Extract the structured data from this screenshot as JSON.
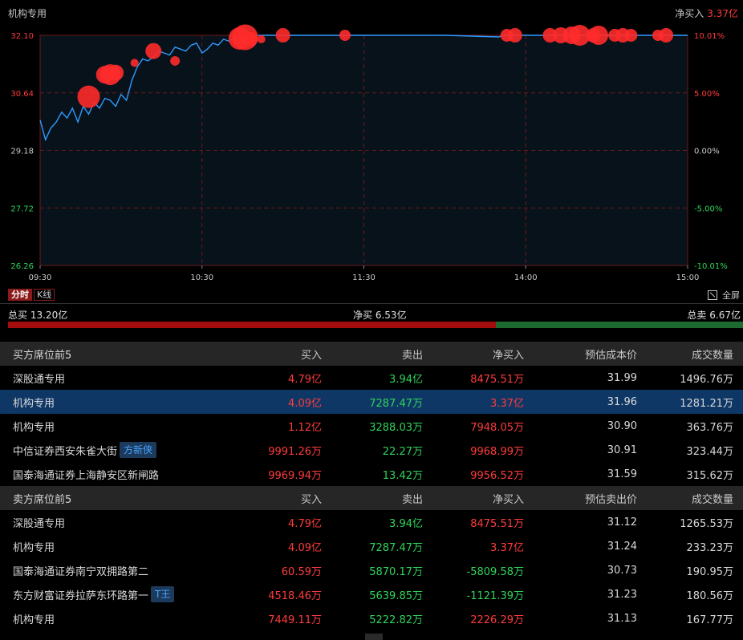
{
  "header": {
    "title": "机构专用",
    "net_label": "净买入",
    "net_value": "3.37亿"
  },
  "chart_data": {
    "type": "line",
    "y_left_ticks": [
      "32.10",
      "30.64",
      "29.18",
      "27.72",
      "26.26"
    ],
    "y_right_ticks": [
      "10.01%",
      "5.00%",
      "0.00%",
      "-5.00%",
      "-10.01%"
    ],
    "x_ticks": [
      "09:30",
      "10:30",
      "11:30",
      "14:00",
      "15:00"
    ],
    "ylim": [
      26.26,
      32.1
    ],
    "price_series": [
      [
        0,
        29.95
      ],
      [
        2,
        29.45
      ],
      [
        4,
        29.75
      ],
      [
        6,
        29.9
      ],
      [
        8,
        30.15
      ],
      [
        10,
        30.0
      ],
      [
        12,
        30.25
      ],
      [
        14,
        29.9
      ],
      [
        16,
        30.3
      ],
      [
        18,
        30.1
      ],
      [
        20,
        30.4
      ],
      [
        22,
        30.25
      ],
      [
        24,
        30.5
      ],
      [
        26,
        30.45
      ],
      [
        28,
        30.3
      ],
      [
        30,
        30.6
      ],
      [
        32,
        30.45
      ],
      [
        34,
        30.95
      ],
      [
        36,
        31.3
      ],
      [
        38,
        31.5
      ],
      [
        40,
        31.45
      ],
      [
        42,
        31.55
      ],
      [
        44,
        31.7
      ],
      [
        46,
        31.65
      ],
      [
        48,
        31.6
      ],
      [
        50,
        31.8
      ],
      [
        52,
        31.75
      ],
      [
        54,
        31.7
      ],
      [
        56,
        31.85
      ],
      [
        58,
        31.9
      ],
      [
        60,
        31.65
      ],
      [
        62,
        31.75
      ],
      [
        64,
        31.9
      ],
      [
        66,
        31.85
      ],
      [
        68,
        32.0
      ],
      [
        70,
        31.95
      ],
      [
        72,
        32.05
      ],
      [
        74,
        32.0
      ],
      [
        76,
        32.08
      ],
      [
        78,
        32.05
      ],
      [
        80,
        32.1
      ],
      [
        90,
        32.1
      ],
      [
        100,
        32.1
      ],
      [
        120,
        32.1
      ],
      [
        150,
        32.1
      ],
      [
        170,
        32.06
      ],
      [
        171,
        32.08
      ],
      [
        172,
        32.1
      ],
      [
        200,
        32.1
      ],
      [
        240,
        32.1
      ]
    ],
    "trade_markers": [
      {
        "t": 18,
        "price": 30.54,
        "size": 14
      },
      {
        "t": 24,
        "price": 31.1,
        "size": 11
      },
      {
        "t": 26,
        "price": 31.1,
        "size": 13
      },
      {
        "t": 28,
        "price": 31.15,
        "size": 10
      },
      {
        "t": 35,
        "price": 31.4,
        "size": 5
      },
      {
        "t": 42,
        "price": 31.7,
        "size": 10
      },
      {
        "t": 50,
        "price": 31.45,
        "size": 6
      },
      {
        "t": 74,
        "price": 32.02,
        "size": 14
      },
      {
        "t": 76,
        "price": 32.05,
        "size": 16
      },
      {
        "t": 78,
        "price": 32.0,
        "size": 9
      },
      {
        "t": 82,
        "price": 32.0,
        "size": 5
      },
      {
        "t": 90,
        "price": 32.1,
        "size": 9
      },
      {
        "t": 113,
        "price": 32.1,
        "size": 7
      },
      {
        "t": 173,
        "price": 32.1,
        "size": 8
      },
      {
        "t": 176,
        "price": 32.1,
        "size": 9
      },
      {
        "t": 189,
        "price": 32.1,
        "size": 9
      },
      {
        "t": 193,
        "price": 32.1,
        "size": 10
      },
      {
        "t": 197,
        "price": 32.1,
        "size": 11
      },
      {
        "t": 200,
        "price": 32.1,
        "size": 13
      },
      {
        "t": 205,
        "price": 32.1,
        "size": 9
      },
      {
        "t": 207,
        "price": 32.1,
        "size": 12
      },
      {
        "t": 213,
        "price": 32.1,
        "size": 8
      },
      {
        "t": 216,
        "price": 32.1,
        "size": 9
      },
      {
        "t": 219,
        "price": 32.1,
        "size": 8
      },
      {
        "t": 229,
        "price": 32.1,
        "size": 7
      },
      {
        "t": 232,
        "price": 32.1,
        "size": 9
      }
    ],
    "x_range": [
      0,
      240
    ],
    "colors": {
      "line": "#2e9bff",
      "marker": "#ff2b2b",
      "grid": "#6b1a1a",
      "up": "#ff3b3b",
      "down": "#2fd35a",
      "zero": "#c8c8c8"
    }
  },
  "tabs": [
    {
      "label": "分时",
      "active": true
    },
    {
      "label": "K线",
      "active": false
    }
  ],
  "fullscreen_label": "全屏",
  "totals": {
    "buy_label": "总买",
    "buy_value": "13.20亿",
    "net_label": "净买",
    "net_value": "6.53亿",
    "sell_label": "总卖",
    "sell_value": "6.67亿",
    "buy_ratio": 0.664
  },
  "buy_table": {
    "headers": [
      "买方席位前5",
      "买入",
      "卖出",
      "净买入",
      "预估成本价",
      "成交数量"
    ],
    "rows": [
      {
        "name": "深股通专用",
        "tag": "",
        "buy": "4.79亿",
        "sell": "3.94亿",
        "net": "8475.51万",
        "price": "31.99",
        "qty": "1496.76万",
        "selected": false
      },
      {
        "name": "机构专用",
        "tag": "",
        "buy": "4.09亿",
        "sell": "7287.47万",
        "net": "3.37亿",
        "price": "31.96",
        "qty": "1281.21万",
        "selected": true
      },
      {
        "name": "机构专用",
        "tag": "",
        "buy": "1.12亿",
        "sell": "3288.03万",
        "net": "7948.05万",
        "price": "30.90",
        "qty": "363.76万",
        "selected": false
      },
      {
        "name": "中信证券西安朱雀大街",
        "tag": "方新侠",
        "buy": "9991.26万",
        "sell": "22.27万",
        "net": "9968.99万",
        "price": "30.91",
        "qty": "323.44万",
        "selected": false
      },
      {
        "name": "国泰海通证券上海静安区新闸路",
        "tag": "",
        "buy": "9969.94万",
        "sell": "13.42万",
        "net": "9956.52万",
        "price": "31.59",
        "qty": "315.62万",
        "selected": false
      }
    ]
  },
  "sell_table": {
    "headers": [
      "卖方席位前5",
      "买入",
      "卖出",
      "净买入",
      "预估卖出价",
      "成交数量"
    ],
    "rows": [
      {
        "name": "深股通专用",
        "tag": "",
        "buy": "4.79亿",
        "sell": "3.94亿",
        "net": "8475.51万",
        "price": "31.12",
        "qty": "1265.53万",
        "neg": false
      },
      {
        "name": "机构专用",
        "tag": "",
        "buy": "4.09亿",
        "sell": "7287.47万",
        "net": "3.37亿",
        "price": "31.24",
        "qty": "233.23万",
        "neg": false
      },
      {
        "name": "国泰海通证券南宁双拥路第二",
        "tag": "",
        "buy": "60.59万",
        "sell": "5870.17万",
        "net": "-5809.58万",
        "price": "30.73",
        "qty": "190.95万",
        "neg": true
      },
      {
        "name": "东方财富证券拉萨东环路第一",
        "tag": "T王",
        "buy": "4518.46万",
        "sell": "5639.85万",
        "net": "-1121.39万",
        "price": "31.23",
        "qty": "180.56万",
        "neg": true
      },
      {
        "name": "机构专用",
        "tag": "",
        "buy": "7449.11万",
        "sell": "5222.82万",
        "net": "2226.29万",
        "price": "31.13",
        "qty": "167.77万",
        "neg": false
      }
    ]
  }
}
